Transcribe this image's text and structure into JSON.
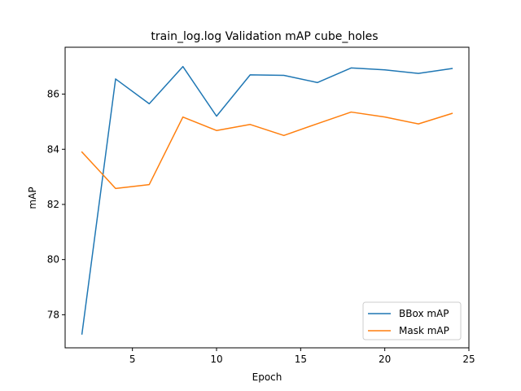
{
  "chart_data": {
    "type": "line",
    "title": "train_log.log Validation mAP cube_holes",
    "xlabel": "Epoch",
    "ylabel": "mAP",
    "xlim": [
      1.0,
      25.0
    ],
    "ylim": [
      76.8,
      87.7
    ],
    "xticks": [
      5,
      10,
      15,
      20,
      25
    ],
    "yticks": [
      78,
      80,
      82,
      84,
      86
    ],
    "grid": false,
    "legend_position": "lower-right",
    "x": [
      2,
      4,
      6,
      8,
      10,
      12,
      14,
      16,
      18,
      20,
      22,
      24
    ],
    "series": [
      {
        "name": "BBox mAP",
        "color": "#1f77b4",
        "values": [
          77.3,
          86.55,
          85.65,
          87.0,
          85.2,
          86.7,
          86.68,
          86.42,
          86.95,
          86.88,
          86.75,
          86.93
        ]
      },
      {
        "name": "Mask mAP",
        "color": "#ff7f0e",
        "values": [
          83.9,
          82.58,
          82.72,
          85.17,
          84.68,
          84.9,
          84.5,
          84.93,
          85.35,
          85.17,
          84.92,
          85.3
        ]
      }
    ]
  }
}
